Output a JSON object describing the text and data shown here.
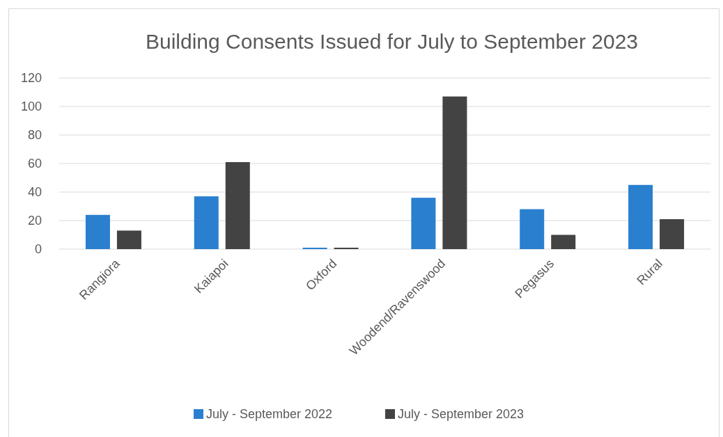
{
  "chart_data": {
    "type": "bar",
    "title": "Building Consents Issued for July to September 2023",
    "categories": [
      "Rangiora",
      "Kaiapoi",
      "Oxford",
      "Woodend/Ravenswood",
      "Pegasus",
      "Rural"
    ],
    "series": [
      {
        "name": "July - September 2022",
        "color": "#2a7fcf",
        "values": [
          24,
          37,
          1,
          36,
          28,
          45
        ]
      },
      {
        "name": "July - September 2023",
        "color": "#434343",
        "values": [
          13,
          61,
          1,
          107,
          10,
          21
        ]
      }
    ],
    "ylim": [
      0,
      120
    ],
    "yticks": [
      0,
      20,
      40,
      60,
      80,
      100,
      120
    ],
    "grid": "y",
    "legend": "bottom"
  }
}
